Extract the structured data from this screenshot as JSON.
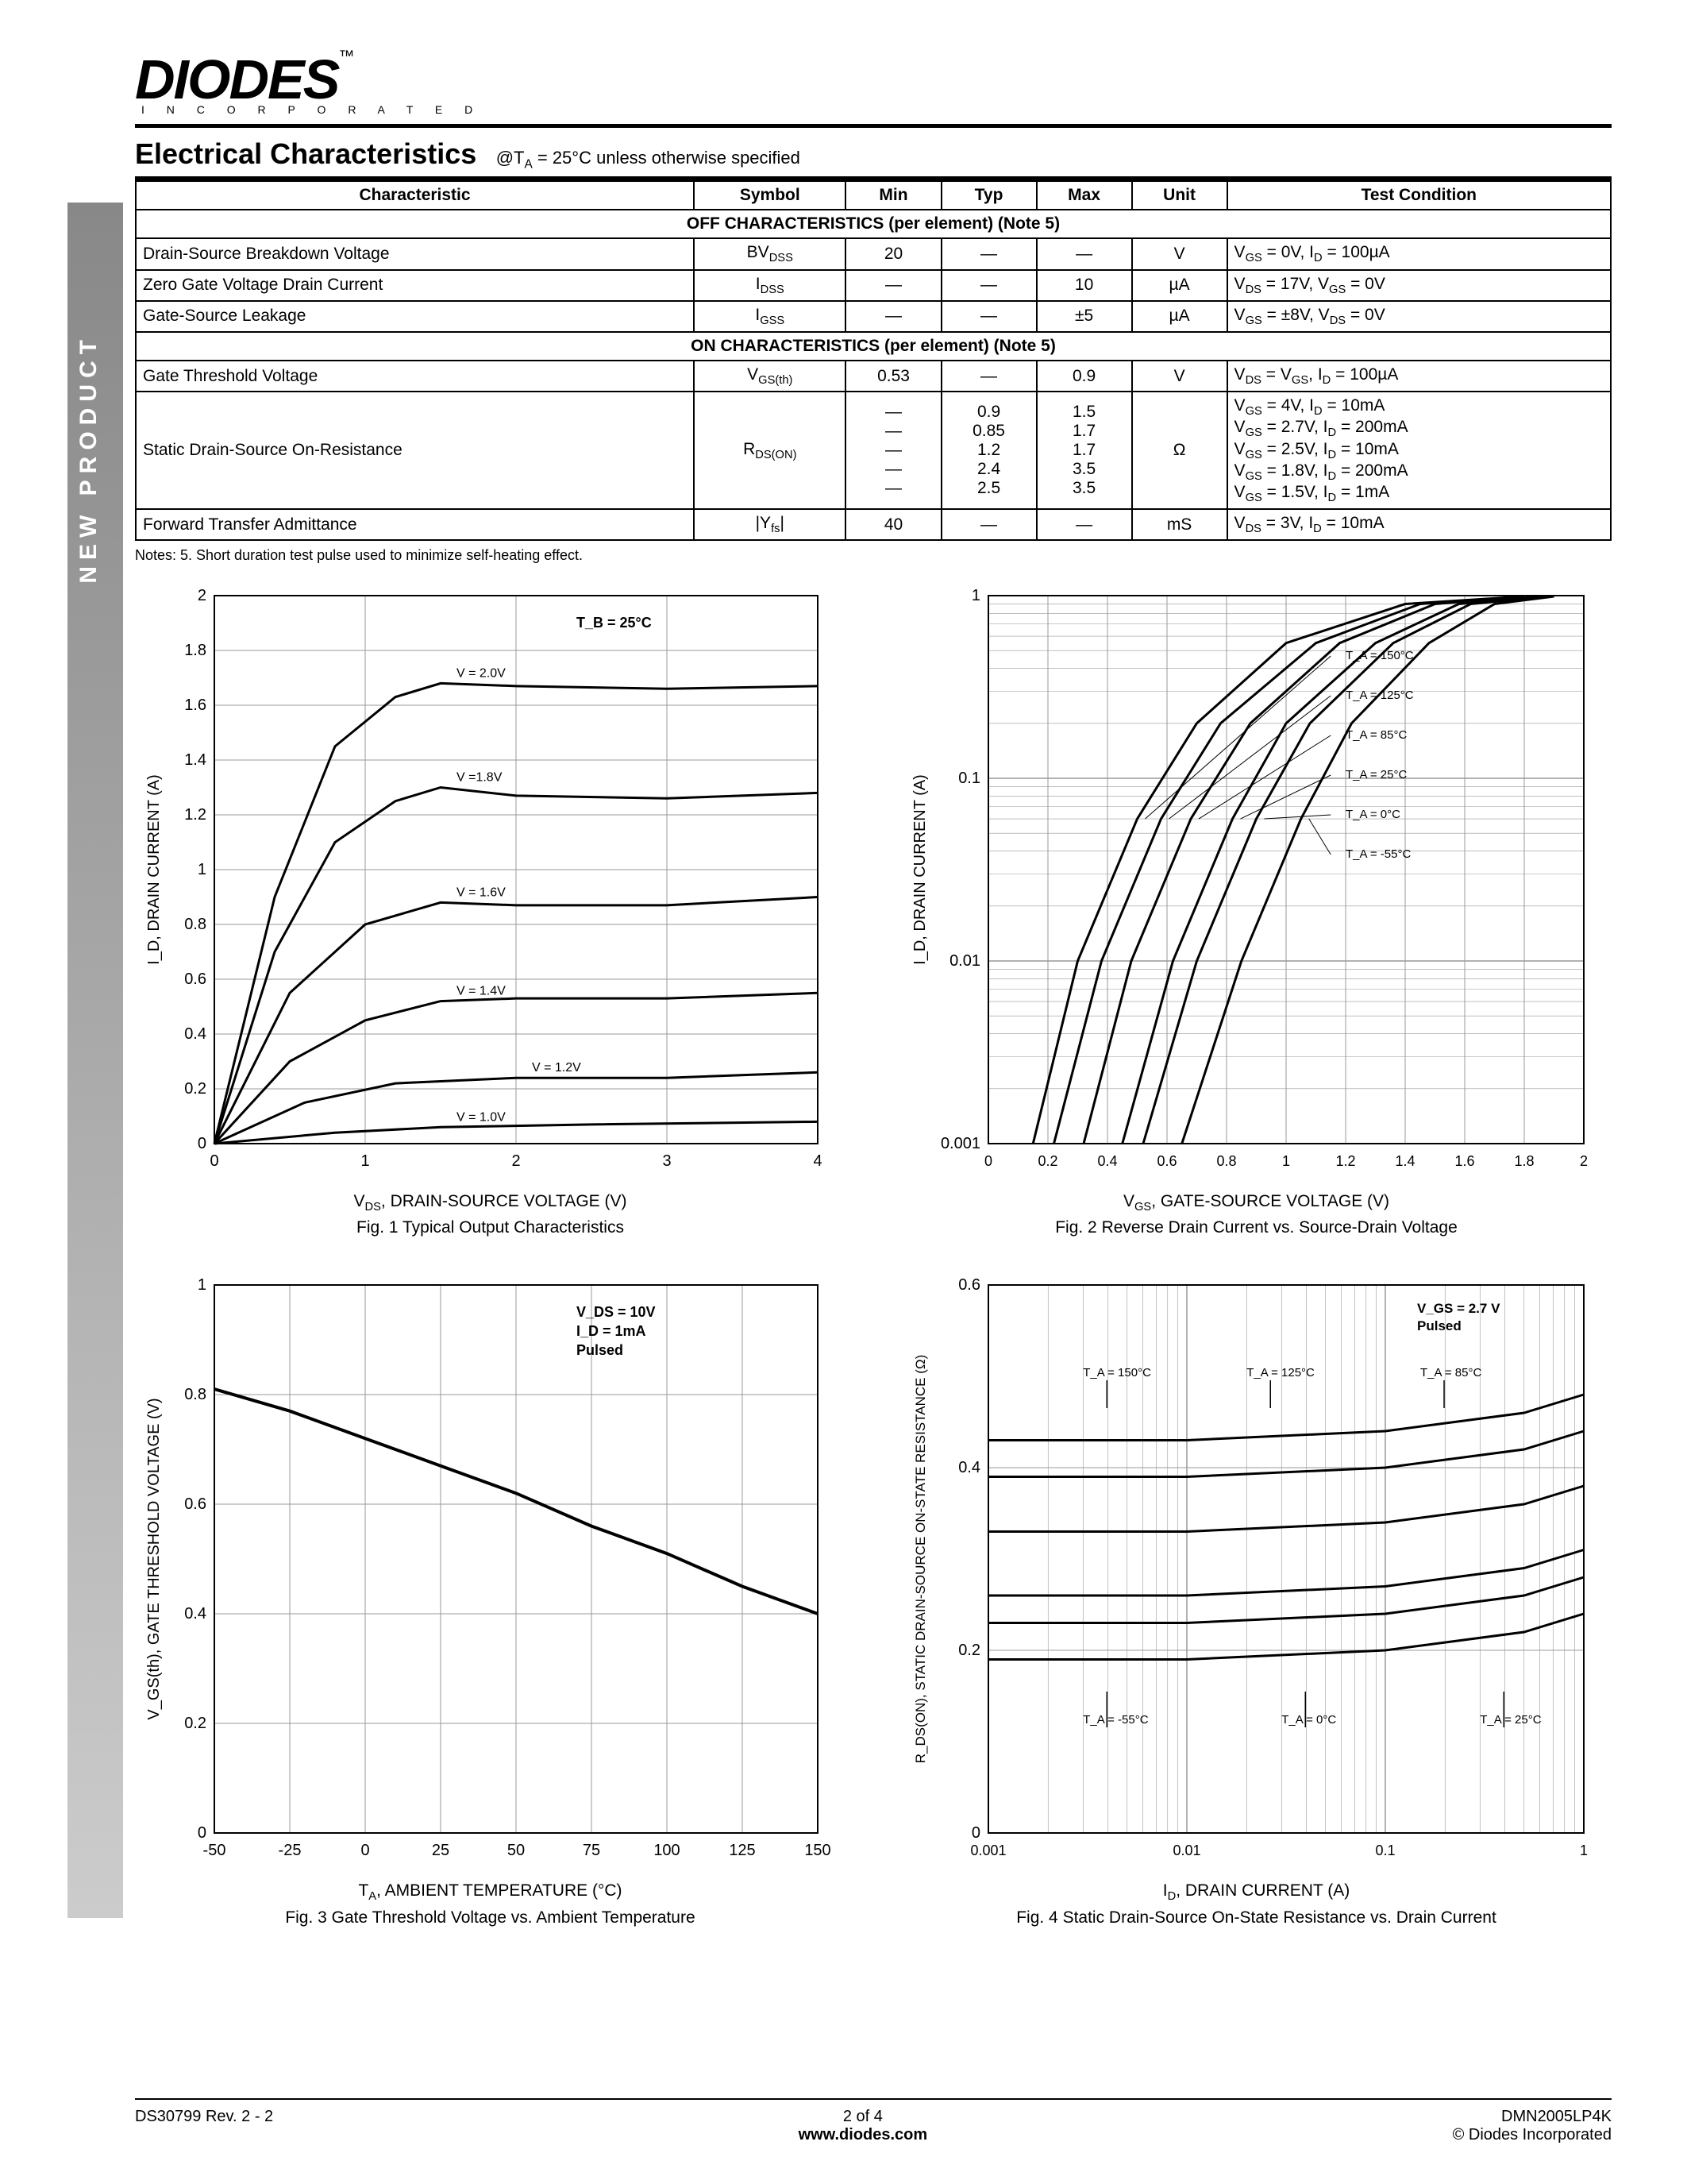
{
  "logo": {
    "main": "DIODES",
    "tm": "™",
    "sub": "I N C O R P O R A T E D"
  },
  "sidebar": "NEW PRODUCT",
  "section": {
    "title": "Electrical Characteristics",
    "condition": "@T_A = 25°C unless otherwise specified"
  },
  "table": {
    "headers": [
      "Characteristic",
      "Symbol",
      "Min",
      "Typ",
      "Max",
      "Unit",
      "Test Condition"
    ],
    "sub1": "OFF CHARACTERISTICS (per element) (Note 5)",
    "rows1": [
      [
        "Drain-Source Breakdown Voltage",
        "BV_DSS",
        "20",
        "—",
        "—",
        "V",
        "V_GS = 0V, I_D = 100µA"
      ],
      [
        "Zero Gate Voltage Drain Current",
        "I_DSS",
        "—",
        "—",
        "10",
        "µA",
        "V_DS = 17V, V_GS = 0V"
      ],
      [
        "Gate-Source Leakage",
        "I_GSS",
        "—",
        "—",
        "±5",
        "µA",
        "V_GS = ±8V, V_DS = 0V"
      ]
    ],
    "sub2": "ON CHARACTERISTICS (per element)  (Note 5)",
    "rows2": [
      [
        "Gate Threshold Voltage",
        "V_GS(th)",
        "0.53",
        "—",
        "0.9",
        "V",
        "V_DS = V_GS, I_D = 100µA"
      ]
    ],
    "rdson": {
      "label": "Static Drain-Source On-Resistance",
      "symbol": "R_DS(ON)",
      "min": [
        "—",
        "—",
        "—",
        "—",
        "—"
      ],
      "typ": [
        "0.9",
        "0.85",
        "1.2",
        "2.4",
        "2.5"
      ],
      "max": [
        "1.5",
        "1.7",
        "1.7",
        "3.5",
        "3.5"
      ],
      "unit": "Ω",
      "cond": [
        "V_GS = 4V, I_D = 10mA",
        "V_GS = 2.7V, I_D = 200mA",
        "V_GS = 2.5V, I_D = 10mA",
        "V_GS = 1.8V, I_D = 200mA",
        "V_GS = 1.5V, I_D = 1mA"
      ]
    },
    "rows3": [
      [
        "Forward Transfer Admittance",
        "|Y_fs|",
        "40",
        "—",
        "—",
        "mS",
        "V_DS = 3V, I_D = 10mA"
      ]
    ]
  },
  "notes": "Notes:  5.  Short duration test pulse used to minimize self-heating effect.",
  "fig1": {
    "type": "line",
    "title": "Fig. 1  Typical Output Characteristics",
    "xlabel": "V_DS, DRAIN-SOURCE VOLTAGE (V)",
    "ylabel": "I_D, DRAIN CURRENT (A)",
    "xlim": [
      0,
      4
    ],
    "ylim": [
      0,
      2
    ],
    "xtick_step": 1,
    "ytick_step": 0.2,
    "annotation": "T_B = 25°C",
    "grid_color": "#999",
    "line_color": "#000",
    "line_width": 3,
    "curves": [
      {
        "label": "V_GS = 2.0V",
        "xy": [
          [
            0,
            0
          ],
          [
            0.4,
            0.9
          ],
          [
            0.8,
            1.45
          ],
          [
            1.2,
            1.63
          ],
          [
            1.5,
            1.68
          ],
          [
            2,
            1.67
          ],
          [
            3,
            1.66
          ],
          [
            4,
            1.67
          ]
        ]
      },
      {
        "label": "V_GS =1.8V",
        "xy": [
          [
            0,
            0
          ],
          [
            0.4,
            0.7
          ],
          [
            0.8,
            1.1
          ],
          [
            1.2,
            1.25
          ],
          [
            1.5,
            1.3
          ],
          [
            2,
            1.27
          ],
          [
            3,
            1.26
          ],
          [
            4,
            1.28
          ]
        ]
      },
      {
        "label": "V_GS = 1.6V",
        "xy": [
          [
            0,
            0
          ],
          [
            0.5,
            0.55
          ],
          [
            1,
            0.8
          ],
          [
            1.5,
            0.88
          ],
          [
            2,
            0.87
          ],
          [
            3,
            0.87
          ],
          [
            4,
            0.9
          ]
        ]
      },
      {
        "label": "V_GS = 1.4V",
        "xy": [
          [
            0,
            0
          ],
          [
            0.5,
            0.3
          ],
          [
            1,
            0.45
          ],
          [
            1.5,
            0.52
          ],
          [
            2,
            0.53
          ],
          [
            3,
            0.53
          ],
          [
            4,
            0.55
          ]
        ]
      },
      {
        "label": "V_GS = 1.2V",
        "xy": [
          [
            0,
            0
          ],
          [
            0.6,
            0.15
          ],
          [
            1.2,
            0.22
          ],
          [
            2,
            0.24
          ],
          [
            3,
            0.24
          ],
          [
            4,
            0.26
          ]
        ]
      },
      {
        "label": "V_GS = 1.0V",
        "xy": [
          [
            0,
            0
          ],
          [
            0.8,
            0.04
          ],
          [
            1.5,
            0.06
          ],
          [
            2.5,
            0.07
          ],
          [
            4,
            0.08
          ]
        ]
      }
    ]
  },
  "fig2": {
    "type": "line-logy",
    "title": "Fig. 2 Reverse Drain Current vs. Source-Drain Voltage",
    "xlabel": "V_GS, GATE-SOURCE VOLTAGE (V)",
    "ylabel": "I_D, DRAIN CURRENT (A)",
    "xlim": [
      0,
      2
    ],
    "ylim": [
      0.001,
      1
    ],
    "xtick_step": 0.2,
    "grid_color": "#999",
    "line_color": "#000",
    "line_width": 3,
    "curves": [
      {
        "label": "T_A = 150°C",
        "xy": [
          [
            0.15,
            0.001
          ],
          [
            0.3,
            0.01
          ],
          [
            0.5,
            0.06
          ],
          [
            0.7,
            0.2
          ],
          [
            1.0,
            0.55
          ],
          [
            1.4,
            0.9
          ],
          [
            1.8,
            0.99
          ]
        ]
      },
      {
        "label": "T_A = 125°C",
        "xy": [
          [
            0.22,
            0.001
          ],
          [
            0.38,
            0.01
          ],
          [
            0.58,
            0.06
          ],
          [
            0.78,
            0.2
          ],
          [
            1.1,
            0.55
          ],
          [
            1.45,
            0.9
          ],
          [
            1.8,
            0.99
          ]
        ]
      },
      {
        "label": "T_A = 85°C",
        "xy": [
          [
            0.32,
            0.001
          ],
          [
            0.48,
            0.01
          ],
          [
            0.68,
            0.06
          ],
          [
            0.88,
            0.2
          ],
          [
            1.18,
            0.55
          ],
          [
            1.5,
            0.9
          ],
          [
            1.8,
            0.99
          ]
        ]
      },
      {
        "label": "T_A = 25°C",
        "xy": [
          [
            0.45,
            0.001
          ],
          [
            0.62,
            0.01
          ],
          [
            0.82,
            0.06
          ],
          [
            1.0,
            0.2
          ],
          [
            1.3,
            0.55
          ],
          [
            1.58,
            0.9
          ],
          [
            1.85,
            0.99
          ]
        ]
      },
      {
        "label": "T_A = 0°C",
        "xy": [
          [
            0.52,
            0.001
          ],
          [
            0.7,
            0.01
          ],
          [
            0.9,
            0.06
          ],
          [
            1.08,
            0.2
          ],
          [
            1.36,
            0.55
          ],
          [
            1.62,
            0.9
          ],
          [
            1.88,
            0.99
          ]
        ]
      },
      {
        "label": "T_A = -55°C",
        "xy": [
          [
            0.65,
            0.001
          ],
          [
            0.85,
            0.01
          ],
          [
            1.05,
            0.06
          ],
          [
            1.22,
            0.2
          ],
          [
            1.48,
            0.55
          ],
          [
            1.7,
            0.9
          ],
          [
            1.9,
            0.99
          ]
        ]
      }
    ]
  },
  "fig3": {
    "type": "line",
    "title": "Fig. 3 Gate Threshold Voltage vs. Ambient Temperature",
    "xlabel": "T_A, AMBIENT TEMPERATURE (°C)",
    "ylabel": "V_GS(th), GATE THRESHOLD VOLTAGE (V)",
    "xlim": [
      -50,
      150
    ],
    "ylim": [
      0,
      1
    ],
    "xtick_step": 25,
    "ytick_step": 0.2,
    "annotation": "V_DS = 10V\nI_D = 1mA\nPulsed",
    "grid_color": "#999",
    "line_color": "#000",
    "line_width": 4,
    "curve": [
      [
        -50,
        0.81
      ],
      [
        -25,
        0.77
      ],
      [
        0,
        0.72
      ],
      [
        25,
        0.67
      ],
      [
        50,
        0.62
      ],
      [
        75,
        0.56
      ],
      [
        100,
        0.51
      ],
      [
        125,
        0.45
      ],
      [
        150,
        0.4
      ]
    ]
  },
  "fig4": {
    "type": "line-logx",
    "title": "Fig. 4 Static Drain-Source On-State Resistance vs. Drain Current",
    "xlabel": "I_D, DRAIN CURRENT (A)",
    "ylabel": "R_DS(ON), STATIC DRAIN-SOURCE ON-STATE RESISTANCE (Ω)",
    "xlim": [
      0.001,
      1
    ],
    "ylim": [
      0,
      0.6
    ],
    "ytick_step": 0.2,
    "annotation": "V_GS = 2.7 V\nPulsed",
    "grid_color": "#999",
    "line_color": "#000",
    "line_width": 3,
    "curves": [
      {
        "label": "T_A = 150°C",
        "xy": [
          [
            0.001,
            0.43
          ],
          [
            0.01,
            0.43
          ],
          [
            0.1,
            0.44
          ],
          [
            0.5,
            0.46
          ],
          [
            1,
            0.48
          ]
        ]
      },
      {
        "label": "T_A = 125°C",
        "xy": [
          [
            0.001,
            0.39
          ],
          [
            0.01,
            0.39
          ],
          [
            0.1,
            0.4
          ],
          [
            0.5,
            0.42
          ],
          [
            1,
            0.44
          ]
        ]
      },
      {
        "label": "T_A = 85°C",
        "xy": [
          [
            0.001,
            0.33
          ],
          [
            0.01,
            0.33
          ],
          [
            0.1,
            0.34
          ],
          [
            0.5,
            0.36
          ],
          [
            1,
            0.38
          ]
        ]
      },
      {
        "label": "T_A = 25°C",
        "xy": [
          [
            0.001,
            0.26
          ],
          [
            0.01,
            0.26
          ],
          [
            0.1,
            0.27
          ],
          [
            0.5,
            0.29
          ],
          [
            1,
            0.31
          ]
        ]
      },
      {
        "label": "T_A = 0°C",
        "xy": [
          [
            0.001,
            0.23
          ],
          [
            0.01,
            0.23
          ],
          [
            0.1,
            0.24
          ],
          [
            0.5,
            0.26
          ],
          [
            1,
            0.28
          ]
        ]
      },
      {
        "label": "T_A = -55°C",
        "xy": [
          [
            0.001,
            0.19
          ],
          [
            0.01,
            0.19
          ],
          [
            0.1,
            0.2
          ],
          [
            0.5,
            0.22
          ],
          [
            1,
            0.24
          ]
        ]
      }
    ]
  },
  "footer": {
    "left": "DS30799 Rev. 2 - 2",
    "center_top": "2 of 4",
    "center_bot": "www.diodes.com",
    "right_top": "DMN2005LP4K",
    "right_bot": "© Diodes Incorporated"
  }
}
